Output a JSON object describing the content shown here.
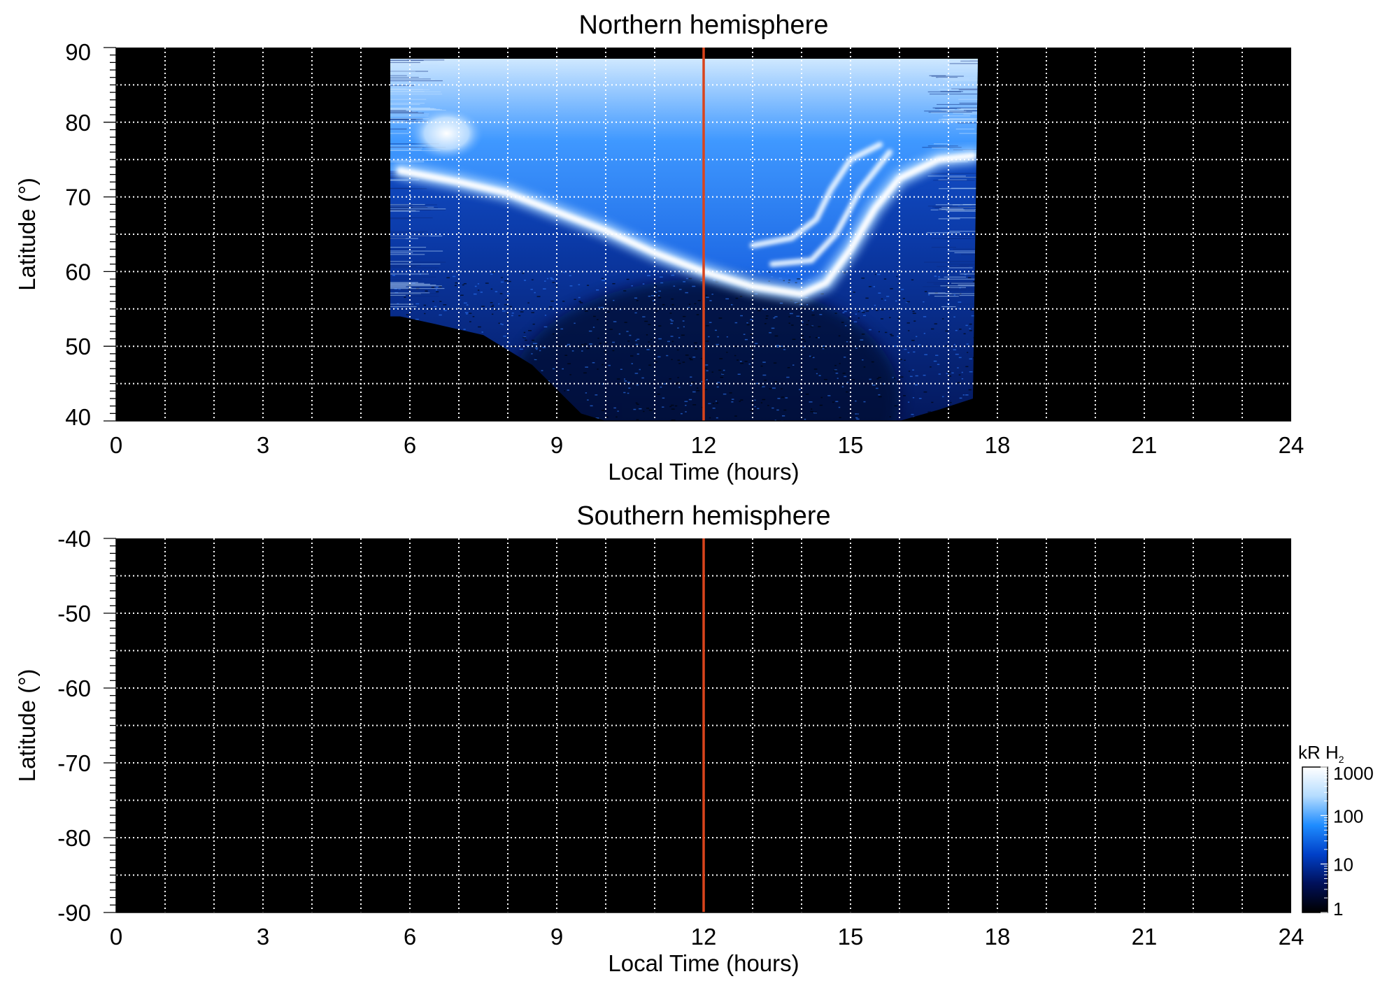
{
  "chart_data": [
    {
      "type": "heatmap",
      "title": "Northern hemisphere",
      "xlabel": "Local Time (hours)",
      "ylabel": "Latitude (°)",
      "xlim": [
        0,
        24
      ],
      "ylim": [
        40,
        90
      ],
      "xticks": [
        0,
        3,
        6,
        9,
        12,
        15,
        18,
        21,
        24
      ],
      "xtick_labels": [
        "0",
        "3",
        "6",
        "9",
        "12",
        "15",
        "18",
        "21",
        "24"
      ],
      "yticks": [
        40,
        50,
        60,
        70,
        80,
        90
      ],
      "ytick_labels": [
        "40",
        "50",
        "60",
        "70",
        "80",
        "90"
      ],
      "grid": true,
      "background_color": "#000000",
      "grid_color": "#ffffff",
      "marker_line": {
        "x": 12,
        "color": "#d9441c"
      },
      "coverage": {
        "x_range": [
          5.6,
          17.6
        ],
        "top_latitude": 88.5,
        "lower_boundary": [
          [
            5.8,
            54
          ],
          [
            6.5,
            53
          ],
          [
            7.5,
            51.5
          ],
          [
            8.5,
            47.5
          ],
          [
            9.5,
            41
          ],
          [
            10,
            40
          ],
          [
            16,
            40
          ],
          [
            16.8,
            41.5
          ],
          [
            17.5,
            43
          ]
        ]
      },
      "features": {
        "main_oval": [
          [
            5.8,
            73.5
          ],
          [
            7,
            72
          ],
          [
            8,
            70.5
          ],
          [
            9,
            68
          ],
          [
            10,
            65.5
          ],
          [
            11,
            62.5
          ],
          [
            12,
            60
          ],
          [
            13,
            58
          ],
          [
            14,
            57
          ],
          [
            14.5,
            58.5
          ],
          [
            15,
            63
          ],
          [
            15.5,
            68.5
          ],
          [
            16,
            72.5
          ],
          [
            16.8,
            75
          ],
          [
            17.5,
            75.5
          ]
        ],
        "bright_dawn_patch": {
          "x_range": [
            6,
            7.5
          ],
          "lat_range": [
            75,
            82
          ]
        },
        "secondary_arcs_afternoon": [
          [
            [
              13,
              63.5
            ],
            [
              13.8,
              64.5
            ],
            [
              14.3,
              67
            ],
            [
              14.6,
              71
            ],
            [
              15,
              75
            ],
            [
              15.6,
              77
            ]
          ],
          [
            [
              13.4,
              61
            ],
            [
              14.2,
              61.5
            ],
            [
              14.7,
              65
            ],
            [
              15.2,
              71
            ],
            [
              15.8,
              76
            ]
          ]
        ],
        "diffuse_dim_region": {
          "x_range": [
            8,
            16
          ],
          "lat_range": [
            40,
            56
          ]
        }
      }
    },
    {
      "type": "heatmap",
      "title": "Southern hemisphere",
      "xlabel": "Local Time (hours)",
      "ylabel": "Latitude (°)",
      "xlim": [
        0,
        24
      ],
      "ylim": [
        -90,
        -40
      ],
      "xticks": [
        0,
        3,
        6,
        9,
        12,
        15,
        18,
        21,
        24
      ],
      "xtick_labels": [
        "0",
        "3",
        "6",
        "9",
        "12",
        "15",
        "18",
        "21",
        "24"
      ],
      "yticks": [
        -40,
        -50,
        -60,
        -70,
        -80,
        -90
      ],
      "ytick_labels": [
        "-40",
        "-50",
        "-60",
        "-70",
        "-80",
        "-90"
      ],
      "grid": true,
      "background_color": "#000000",
      "grid_color": "#ffffff",
      "marker_line": {
        "x": 12,
        "color": "#d9441c"
      },
      "coverage": null
    }
  ],
  "colorbar": {
    "title_main": "kR H",
    "title_sub": "2",
    "scale": "log",
    "range": [
      1,
      1000
    ],
    "ticks": [
      1,
      10,
      100,
      1000
    ],
    "tick_labels": [
      "1",
      "10",
      "100",
      "1000"
    ],
    "colors": [
      "#000000",
      "#00105a",
      "#0040c8",
      "#1e8cff",
      "#b4dcff",
      "#ffffff"
    ]
  }
}
